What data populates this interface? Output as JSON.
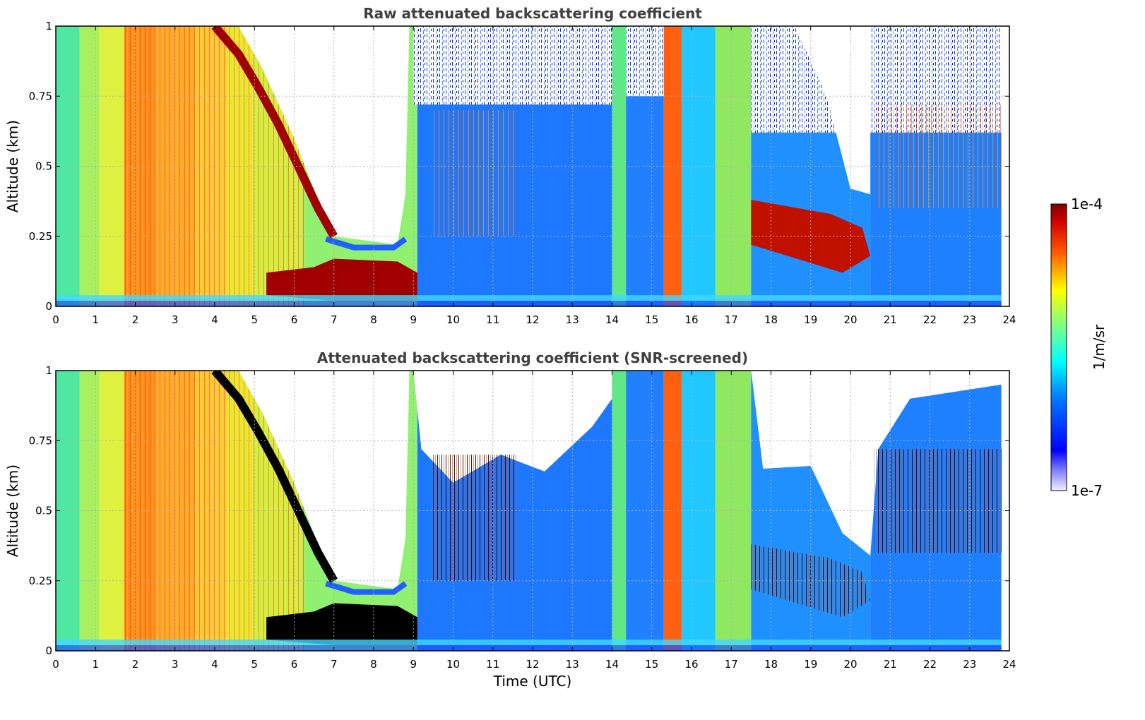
{
  "chart_data": [
    {
      "type": "heatmap",
      "title": "Raw attenuated backscattering coefficient",
      "xlabel": "",
      "ylabel": "Altitude (km)",
      "xlim": [
        0,
        24
      ],
      "ylim": [
        0,
        1
      ],
      "x_ticks": [
        "0",
        "1",
        "2",
        "3",
        "4",
        "5",
        "6",
        "7",
        "8",
        "9",
        "10",
        "11",
        "12",
        "13",
        "14",
        "15",
        "16",
        "17",
        "18",
        "19",
        "20",
        "21",
        "22",
        "23",
        "24"
      ],
      "y_ticks": [
        "0",
        "0.25",
        "0.5",
        "0.75",
        "1"
      ],
      "grid": true,
      "screened": false
    },
    {
      "type": "heatmap",
      "title": "Attenuated backscattering coefficient (SNR-screened)",
      "xlabel": "Time (UTC)",
      "ylabel": "Altitude (km)",
      "xlim": [
        0,
        24
      ],
      "ylim": [
        0,
        1
      ],
      "x_ticks": [
        "0",
        "1",
        "2",
        "3",
        "4",
        "5",
        "6",
        "7",
        "8",
        "9",
        "10",
        "11",
        "12",
        "13",
        "14",
        "15",
        "16",
        "17",
        "18",
        "19",
        "20",
        "21",
        "22",
        "23",
        "24"
      ],
      "y_ticks": [
        "0",
        "0.25",
        "0.5",
        "0.75",
        "1"
      ],
      "grid": true,
      "screened": true
    }
  ],
  "colorbar": {
    "max_label": "1e-4",
    "min_label": "1e-7",
    "unit_label": "1/m/sr",
    "scale": "log"
  },
  "colors": {
    "title": "#404040",
    "grid": "#b0b0b0",
    "saturated": "#000000"
  }
}
